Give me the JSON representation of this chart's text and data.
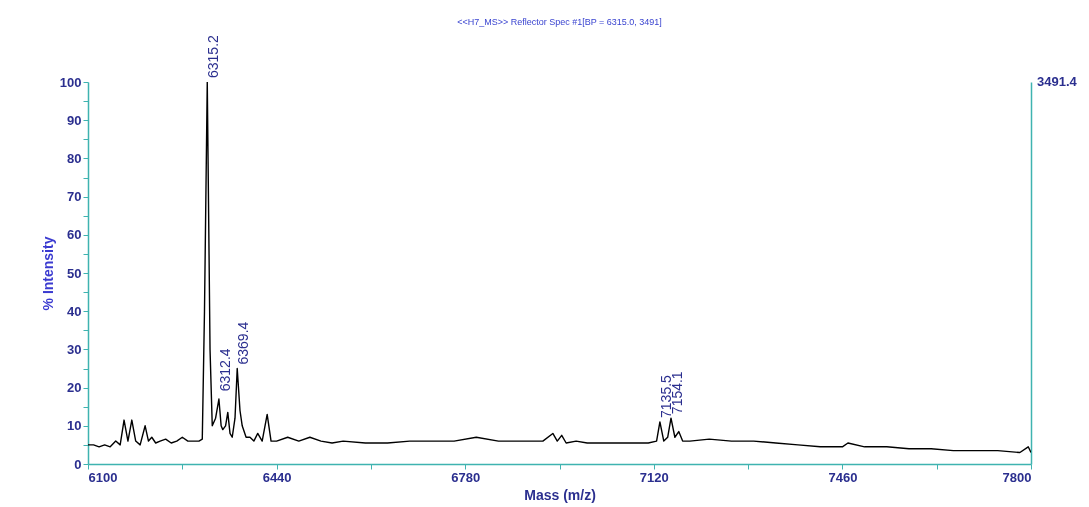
{
  "chart_data": {
    "type": "line",
    "title": "<<H7_MS>> Reflector Spec #1[BP = 6315.0, 3491]",
    "xlabel": "Mass (m/z)",
    "ylabel": "% Intensity",
    "x": [
      6100,
      6110,
      6120,
      6130,
      6140,
      6150,
      6158,
      6165,
      6172,
      6179,
      6186,
      6194,
      6203,
      6209,
      6215,
      6222,
      6230,
      6240,
      6250,
      6260,
      6270,
      6280,
      6290,
      6300,
      6306,
      6310,
      6315,
      6320,
      6324,
      6330,
      6336,
      6340,
      6343,
      6348,
      6352,
      6356,
      6360,
      6365,
      6369,
      6374,
      6378,
      6385,
      6392,
      6399,
      6406,
      6414,
      6423,
      6430,
      6440,
      6460,
      6480,
      6500,
      6520,
      6540,
      6560,
      6600,
      6640,
      6680,
      6720,
      6760,
      6800,
      6840,
      6880,
      6920,
      6938,
      6946,
      6954,
      6962,
      6980,
      7000,
      7040,
      7080,
      7110,
      7125,
      7131,
      7138,
      7145,
      7151,
      7158,
      7165,
      7172,
      7185,
      7220,
      7260,
      7300,
      7340,
      7380,
      7420,
      7460,
      7470,
      7500,
      7540,
      7580,
      7620,
      7660,
      7700,
      7740,
      7780,
      7795,
      7800
    ],
    "series": [
      {
        "color": "#000000",
        "values": [
          5,
          5,
          4.5,
          5,
          4.5,
          6,
          5,
          11.5,
          6,
          11.5,
          6,
          5,
          10,
          6,
          7,
          5.5,
          6,
          6.5,
          5.5,
          6,
          7,
          6,
          6,
          6,
          6.5,
          40,
          100,
          30,
          10,
          12,
          17,
          10,
          9,
          10,
          13.5,
          8,
          7,
          12,
          25,
          14,
          10,
          7,
          7,
          6,
          8,
          6,
          13,
          6,
          6,
          7,
          6,
          7,
          6,
          5.5,
          6,
          5.5,
          5.5,
          6,
          6,
          6,
          7,
          6,
          6,
          6,
          8,
          6,
          7.5,
          5.5,
          6,
          5.5,
          5.5,
          5.5,
          5.5,
          6,
          11,
          6,
          7,
          12,
          7,
          8.5,
          6,
          6,
          6.5,
          6,
          6,
          5.5,
          5,
          4.5,
          4.5,
          5.5,
          4.5,
          4.5,
          4,
          4,
          3.5,
          3.5,
          3.5,
          3,
          4.5,
          3
        ]
      }
    ],
    "xlim": [
      6100,
      7800
    ],
    "xticks": [
      {
        "value": 6100,
        "label": "6100"
      },
      {
        "value": 6270,
        "label": null
      },
      {
        "value": 6440,
        "label": "6440"
      },
      {
        "value": 6610,
        "label": null
      },
      {
        "value": 6780,
        "label": "6780"
      },
      {
        "value": 6950,
        "label": null
      },
      {
        "value": 7120,
        "label": "7120"
      },
      {
        "value": 7290,
        "label": null
      },
      {
        "value": 7460,
        "label": "7460"
      },
      {
        "value": 7630,
        "label": null
      },
      {
        "value": 7800,
        "label": "7800"
      }
    ],
    "ylim": [
      0,
      100
    ],
    "yticks": [
      0,
      {
        "value": 5,
        "label": null
      },
      10,
      {
        "value": 15,
        "label": null
      },
      20,
      {
        "value": 25,
        "label": null
      },
      30,
      {
        "value": 35,
        "label": null
      },
      40,
      {
        "value": 45,
        "label": null
      },
      50,
      {
        "value": 55,
        "label": null
      },
      60,
      {
        "value": 65,
        "label": null
      },
      70,
      {
        "value": 75,
        "label": null
      },
      80,
      {
        "value": 85,
        "label": null
      },
      90,
      {
        "value": 95,
        "label": null
      },
      100
    ],
    "annotations": [
      "3491.4",
      {
        "text": "6315.2",
        "x": 6315,
        "y": 100
      },
      {
        "text": "6312.4",
        "x": 6336,
        "y": 18
      },
      {
        "text": "6369.4",
        "x": 6369,
        "y": 25
      },
      {
        "text": "7135.5",
        "x": 7131,
        "y": 11
      },
      {
        "text": "7154.1",
        "x": 7151,
        "y": 12
      }
    ]
  }
}
